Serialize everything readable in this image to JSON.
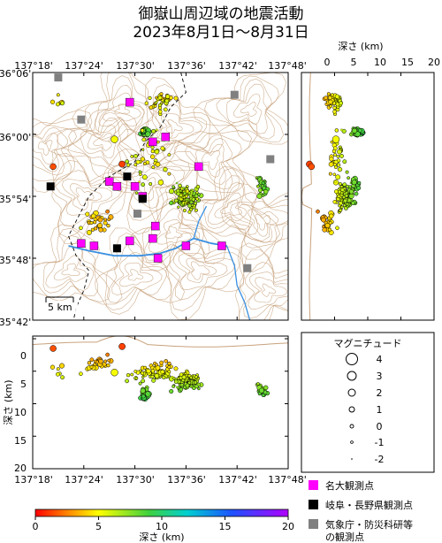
{
  "title": {
    "line1": "御嶽山周辺域の地震活動",
    "line2": "2023年8月1日～8月31日"
  },
  "map": {
    "lon_ticks": [
      "137°18'",
      "137°24'",
      "137°30'",
      "137°36'",
      "137°42'",
      "137°48'"
    ],
    "lat_ticks": [
      "36°06'",
      "36°00'",
      "35°54'",
      "35°48'",
      "35°42'"
    ],
    "scale_label": "5 km"
  },
  "depth_ns_panel": {
    "xlabel": "深さ (km)",
    "x_ticks": [
      "0",
      "5",
      "10",
      "15",
      "20"
    ]
  },
  "depth_ew_panel": {
    "ylabel": "深さ (km)",
    "y_ticks": [
      "0",
      "5",
      "10",
      "15",
      "20"
    ],
    "x_ticks": [
      "137°18'",
      "137°24'",
      "137°30'",
      "137°36'",
      "137°42'",
      "137°48'"
    ]
  },
  "magnitude_legend": {
    "title": "マグニチュード",
    "entries": [
      {
        "label": "4",
        "mag": 4
      },
      {
        "label": "3",
        "mag": 3
      },
      {
        "label": "2",
        "mag": 2
      },
      {
        "label": "1",
        "mag": 1
      },
      {
        "label": "0",
        "mag": 0
      },
      {
        "label": "-1",
        "mag": -1
      },
      {
        "label": "-2",
        "mag": -2
      }
    ]
  },
  "station_legend": [
    {
      "label": "名大観測点",
      "color": "#ff00ff"
    },
    {
      "label": "岐阜・長野県観測点",
      "color": "#000000"
    },
    {
      "label": "気象庁・防災科研等",
      "label2": "の観測点",
      "color": "#808080"
    }
  ],
  "colorbar": {
    "label": "深さ (km)",
    "ticks": [
      "0",
      "5",
      "10",
      "15",
      "20"
    ],
    "range": [
      0,
      20
    ]
  },
  "colors": {
    "contour": "#c8a27c",
    "river": "#3a8fe0",
    "boundary": "#000000"
  }
}
